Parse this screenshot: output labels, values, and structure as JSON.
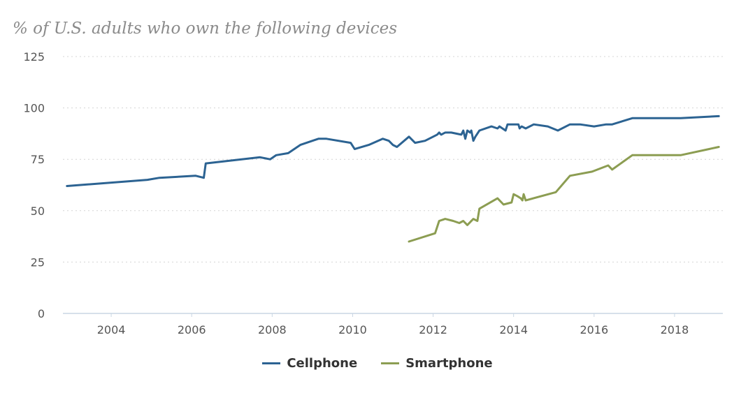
{
  "chart_data": {
    "type": "line",
    "title": "% of U.S. adults who own the following devices",
    "xlabel": "",
    "ylabel": "",
    "xlim": [
      2002.8,
      2019.2
    ],
    "ylim": [
      0,
      125
    ],
    "y_ticks": [
      0,
      25,
      50,
      75,
      100,
      125
    ],
    "x_ticks": [
      2004,
      2006,
      2008,
      2010,
      2012,
      2014,
      2016,
      2018
    ],
    "grid": true,
    "legend_position": "bottom-center",
    "series": [
      {
        "name": "Cellphone",
        "color": "#2c6392",
        "points": [
          [
            2002.9,
            62
          ],
          [
            2004.9,
            65
          ],
          [
            2005.2,
            66
          ],
          [
            2006.1,
            67
          ],
          [
            2006.3,
            66
          ],
          [
            2006.35,
            73
          ],
          [
            2007.7,
            76
          ],
          [
            2007.95,
            75
          ],
          [
            2008.1,
            77
          ],
          [
            2008.4,
            78
          ],
          [
            2008.7,
            82
          ],
          [
            2009.0,
            84
          ],
          [
            2009.15,
            85
          ],
          [
            2009.35,
            85
          ],
          [
            2009.95,
            83
          ],
          [
            2010.05,
            80
          ],
          [
            2010.4,
            82
          ],
          [
            2010.75,
            85
          ],
          [
            2010.9,
            84
          ],
          [
            2011.0,
            82
          ],
          [
            2011.1,
            81
          ],
          [
            2011.4,
            86
          ],
          [
            2011.55,
            83
          ],
          [
            2011.8,
            84
          ],
          [
            2012.1,
            87
          ],
          [
            2012.15,
            88
          ],
          [
            2012.2,
            87
          ],
          [
            2012.3,
            88
          ],
          [
            2012.45,
            88
          ],
          [
            2012.7,
            87
          ],
          [
            2012.75,
            89
          ],
          [
            2012.8,
            85
          ],
          [
            2012.85,
            89
          ],
          [
            2012.92,
            88
          ],
          [
            2012.95,
            89
          ],
          [
            2013.0,
            84
          ],
          [
            2013.05,
            86
          ],
          [
            2013.15,
            89
          ],
          [
            2013.45,
            91
          ],
          [
            2013.6,
            90
          ],
          [
            2013.65,
            91
          ],
          [
            2013.8,
            89
          ],
          [
            2013.85,
            92
          ],
          [
            2014.05,
            92
          ],
          [
            2014.12,
            92
          ],
          [
            2014.15,
            90
          ],
          [
            2014.2,
            91
          ],
          [
            2014.3,
            90
          ],
          [
            2014.5,
            92
          ],
          [
            2014.85,
            91
          ],
          [
            2015.1,
            89
          ],
          [
            2015.4,
            92
          ],
          [
            2015.65,
            92
          ],
          [
            2016.0,
            91
          ],
          [
            2016.3,
            92
          ],
          [
            2016.45,
            92
          ],
          [
            2016.95,
            95
          ],
          [
            2018.15,
            95
          ],
          [
            2019.1,
            96
          ]
        ]
      },
      {
        "name": "Smartphone",
        "color": "#8c9d52",
        "points": [
          [
            2011.4,
            35
          ],
          [
            2012.05,
            39
          ],
          [
            2012.15,
            45
          ],
          [
            2012.3,
            46
          ],
          [
            2012.5,
            45
          ],
          [
            2012.65,
            44
          ],
          [
            2012.75,
            45
          ],
          [
            2012.85,
            43
          ],
          [
            2013.0,
            46
          ],
          [
            2013.1,
            45
          ],
          [
            2013.15,
            51
          ],
          [
            2013.6,
            56
          ],
          [
            2013.75,
            53
          ],
          [
            2013.95,
            54
          ],
          [
            2014.0,
            58
          ],
          [
            2014.1,
            57
          ],
          [
            2014.18,
            56
          ],
          [
            2014.22,
            55
          ],
          [
            2014.25,
            58
          ],
          [
            2014.3,
            55
          ],
          [
            2015.05,
            59
          ],
          [
            2015.4,
            67
          ],
          [
            2015.95,
            69
          ],
          [
            2016.35,
            72
          ],
          [
            2016.45,
            70
          ],
          [
            2016.95,
            77
          ],
          [
            2018.15,
            77
          ],
          [
            2019.1,
            81
          ]
        ]
      }
    ]
  }
}
